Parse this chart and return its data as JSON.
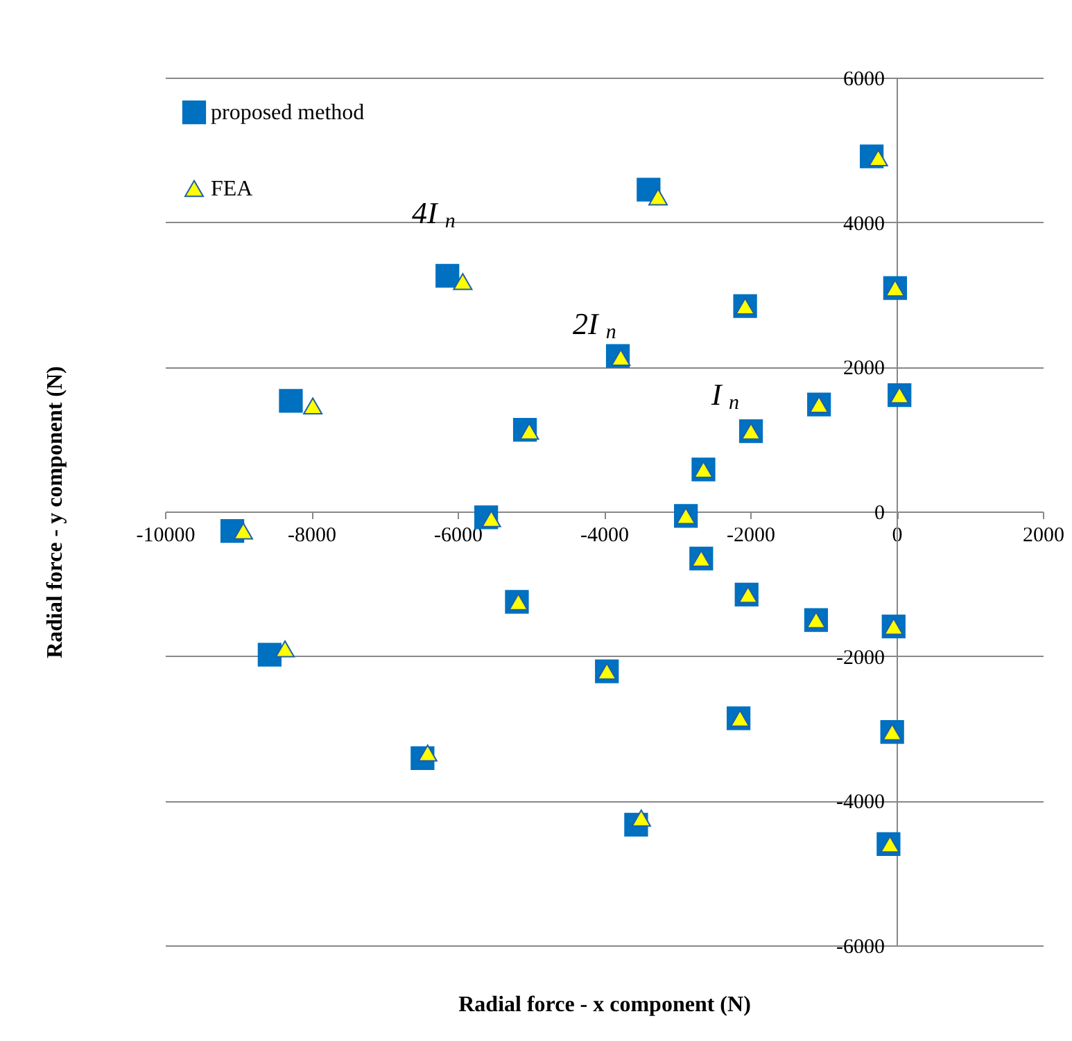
{
  "chart_data": {
    "type": "scatter",
    "xlabel": "Radial force - x component (N)",
    "ylabel": "Radial force - y component (N)",
    "xlim": [
      -10000,
      2000
    ],
    "xticks": [
      -10000,
      -8000,
      -6000,
      -4000,
      -2000,
      0,
      2000
    ],
    "ylim": [
      -6000,
      6000
    ],
    "yticks": [
      -6000,
      -4000,
      -2000,
      0,
      2000,
      4000,
      6000
    ],
    "grid": "y",
    "legend": "top left",
    "annotations": [
      "4I$_{n}$",
      "2I$_{n}$",
      "I$_{n}$"
    ],
    "series": [
      {
        "name": "proposed method",
        "color": "#0070c0",
        "marker": "square",
        "x": [
          -6140,
          -3390,
          -340,
          -20,
          -2070,
          -3810,
          -8280,
          -5080,
          -1060,
          40,
          -1990,
          -2640,
          -2880,
          -5610,
          -9080,
          -2670,
          -2050,
          -5190,
          -1100,
          -40,
          -8570,
          -3960,
          -2160,
          -60,
          -6480,
          -3560,
          -110
        ],
        "values": [
          3260,
          4450,
          4910,
          3090,
          2840,
          2150,
          1530,
          1130,
          1480,
          1610,
          1110,
          580,
          -60,
          -80,
          -270,
          -650,
          -1150,
          -1250,
          -1500,
          -1590,
          -1980,
          -2210,
          -2860,
          -3050,
          -3410,
          -4330,
          -4600
        ]
      },
      {
        "name": "FEA",
        "color": "#ffff00",
        "marker": "triangle",
        "x": [
          -5930,
          -3260,
          -250,
          -20,
          -2070,
          -3770,
          -7980,
          -5020,
          -1060,
          40,
          -1990,
          -2640,
          -2880,
          -5540,
          -8930,
          -2670,
          -2030,
          -5170,
          -1100,
          -40,
          -8360,
          -3960,
          -2140,
          -60,
          -6410,
          -3490,
          -90
        ],
        "values": [
          3180,
          4350,
          4890,
          3090,
          2840,
          2130,
          1460,
          1110,
          1480,
          1610,
          1110,
          580,
          -60,
          -100,
          -270,
          -650,
          -1150,
          -1250,
          -1500,
          -1590,
          -1900,
          -2210,
          -2860,
          -3050,
          -3340,
          -4240,
          -4600
        ]
      }
    ]
  }
}
